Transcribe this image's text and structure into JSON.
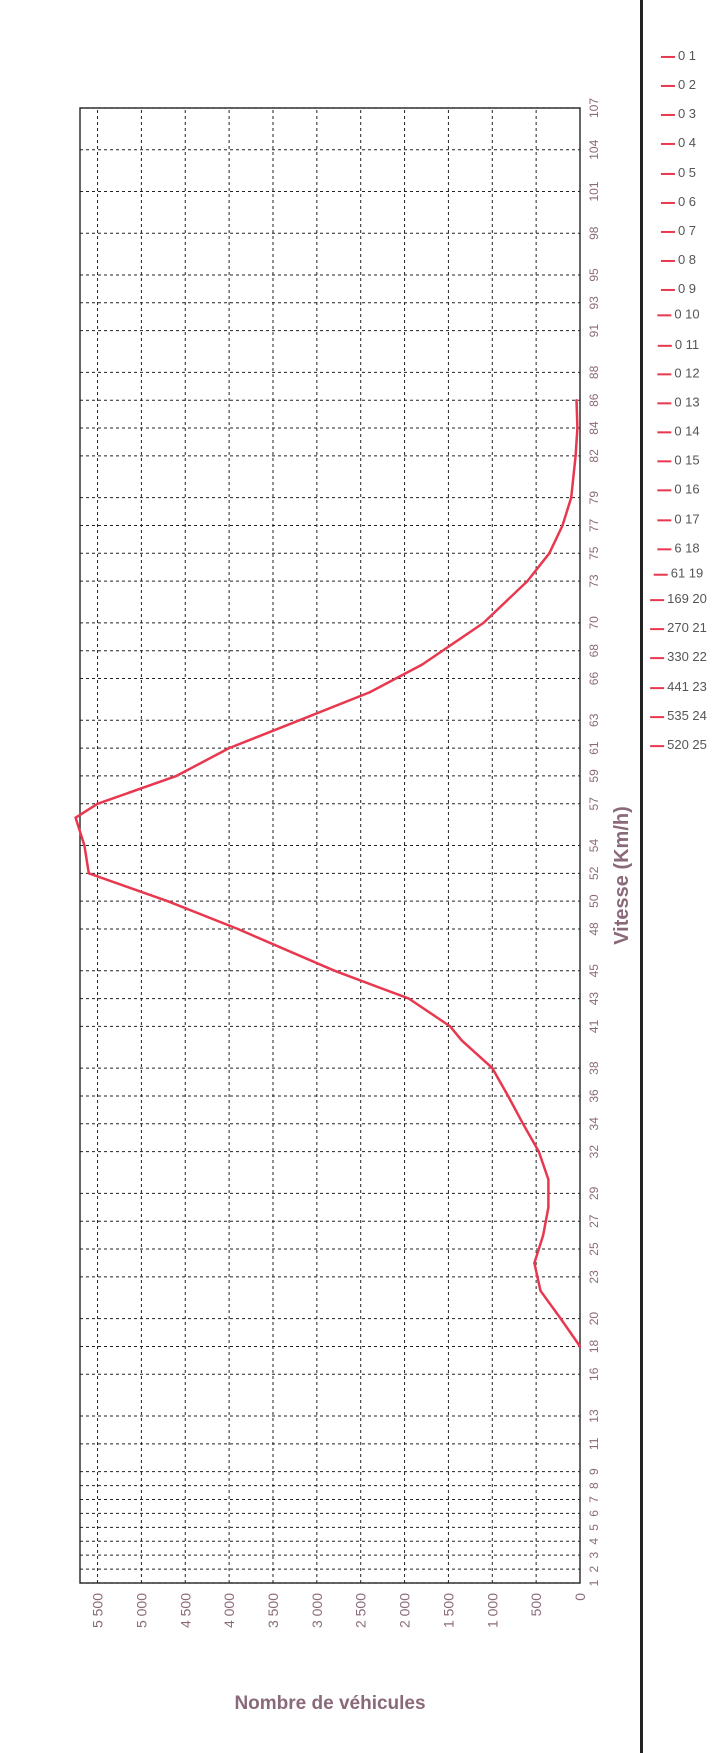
{
  "chart_data": {
    "type": "line",
    "title": "",
    "xlabel": "Vitesse (Km/h)",
    "ylabel": "Nombre de véhicules",
    "ylim": [
      0,
      5700
    ],
    "xlim": [
      1,
      107
    ],
    "y_ticks": [
      "0",
      "500",
      "1 000",
      "1 500",
      "2 000",
      "2 500",
      "3 000",
      "3 500",
      "4 000",
      "4 500",
      "5 000",
      "5 500"
    ],
    "x_tick_labels": [
      "1",
      "2",
      "3",
      "4",
      "5",
      "6",
      "7",
      "8",
      "9",
      "11",
      "13",
      "16",
      "18",
      "20",
      "23",
      "25",
      "27",
      "29",
      "32",
      "34",
      "36",
      "38",
      "41",
      "43",
      "45",
      "48",
      "50",
      "52",
      "54",
      "57",
      "59",
      "61",
      "63",
      "66",
      "68",
      "70",
      "73",
      "75",
      "77",
      "79",
      "82",
      "84",
      "86",
      "88",
      "91",
      "93",
      "95",
      "98",
      "101",
      "104",
      "107"
    ],
    "grid": true,
    "legend": "right",
    "colors": {
      "line": "#e8384f",
      "axis_label": "#8a6a7a",
      "grid": "#222222"
    },
    "series": [
      {
        "x": [
          18,
          20,
          22,
          24,
          26,
          28,
          30,
          32,
          34,
          36,
          38,
          40,
          41,
          43,
          45,
          48,
          50,
          52,
          54,
          56,
          57,
          59,
          61,
          63,
          65,
          67,
          70,
          73,
          75,
          77,
          79,
          82,
          84,
          86
        ],
        "y": [
          0,
          220,
          450,
          520,
          420,
          360,
          360,
          470,
          650,
          820,
          1000,
          1350,
          1480,
          1950,
          2800,
          3900,
          4700,
          5600,
          5650,
          5750,
          5500,
          4600,
          4000,
          3200,
          2400,
          1800,
          1100,
          600,
          350,
          200,
          100,
          50,
          30,
          40
        ]
      }
    ],
    "legend_entries": [
      "0 1",
      "0 2",
      "0 3",
      "0 4",
      "0 5",
      "0 6",
      "0 7",
      "0 8",
      "0 9",
      "0 10",
      "0 11",
      "0 12",
      "0 13",
      "0 14",
      "0 15",
      "0 16",
      "0 17",
      "6 18",
      "61 19",
      "169 20",
      "270 21",
      "330 22",
      "441 23",
      "535 24",
      "520 25"
    ]
  }
}
